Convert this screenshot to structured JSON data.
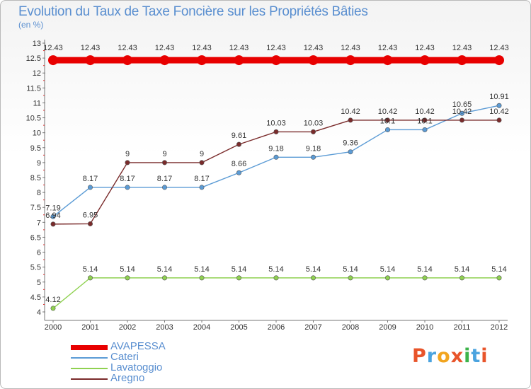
{
  "header": {
    "title": "Evolution du Taux de Taxe Foncière sur les Propriétés Bâties",
    "subtitle": "(en %)"
  },
  "logo": {
    "text": "Proxiti",
    "colors": [
      "#e8542a",
      "#4aa3df",
      "#f2a51f",
      "#e8542a",
      "#3bb34a",
      "#4aa3df",
      "#e8542a"
    ]
  },
  "chart_data": {
    "type": "line",
    "x": [
      "2000",
      "2001",
      "2002",
      "2003",
      "2004",
      "2005",
      "2006",
      "2007",
      "2008",
      "2009",
      "2010",
      "2011",
      "2012"
    ],
    "ylim": [
      4,
      13
    ],
    "yticks": [
      "4",
      "4.5",
      "5",
      "5.5",
      "6",
      "6.5",
      "7",
      "7.5",
      "8",
      "8.5",
      "9",
      "9.5",
      "10",
      "10.5",
      "11",
      "11.5",
      "12",
      "12.5",
      "13"
    ],
    "grid": false,
    "legend": "bottom-left",
    "series": [
      {
        "name": "AVAPESSA",
        "color": "#e80000",
        "values": [
          12.43,
          12.43,
          12.43,
          12.43,
          12.43,
          12.43,
          12.43,
          12.43,
          12.43,
          12.43,
          12.43,
          12.43,
          12.43
        ],
        "labels": [
          "12.43",
          "12.43",
          "12.43",
          "12.43",
          "12.43",
          "12.43",
          "12.43",
          "12.43",
          "12.43",
          "12.43",
          "12.43",
          "12.43",
          "12.43"
        ]
      },
      {
        "name": "Cateri",
        "color": "#5b9bd5",
        "values": [
          7.19,
          8.17,
          8.17,
          8.17,
          8.17,
          8.66,
          9.18,
          9.18,
          9.36,
          10.1,
          10.1,
          10.65,
          10.91
        ],
        "labels": [
          "7.19",
          "8.17",
          "8.17",
          "8.17",
          "8.17",
          "8.66",
          "9.18",
          "9.18",
          "9.36",
          "10.1",
          "10.1",
          "10.65",
          "10.91"
        ]
      },
      {
        "name": "Lavatoggio",
        "color": "#8fd150",
        "values": [
          4.12,
          5.14,
          5.14,
          5.14,
          5.14,
          5.14,
          5.14,
          5.14,
          5.14,
          5.14,
          5.14,
          5.14,
          5.14
        ],
        "labels": [
          "4.12",
          "5.14",
          "5.14",
          "5.14",
          "5.14",
          "5.14",
          "5.14",
          "5.14",
          "5.14",
          "5.14",
          "5.14",
          "5.14",
          "5.14"
        ]
      },
      {
        "name": "Aregno",
        "color": "#7a2b2b",
        "values": [
          6.94,
          6.95,
          9,
          9,
          9,
          9.61,
          10.03,
          10.03,
          10.42,
          10.42,
          10.42,
          10.42,
          10.42
        ],
        "labels": [
          "6.94",
          "6.95",
          "9",
          "9",
          "9",
          "9.61",
          "10.03",
          "10.03",
          "10.42",
          "10.42",
          "10.42",
          "10.42",
          "10.42"
        ]
      }
    ]
  }
}
